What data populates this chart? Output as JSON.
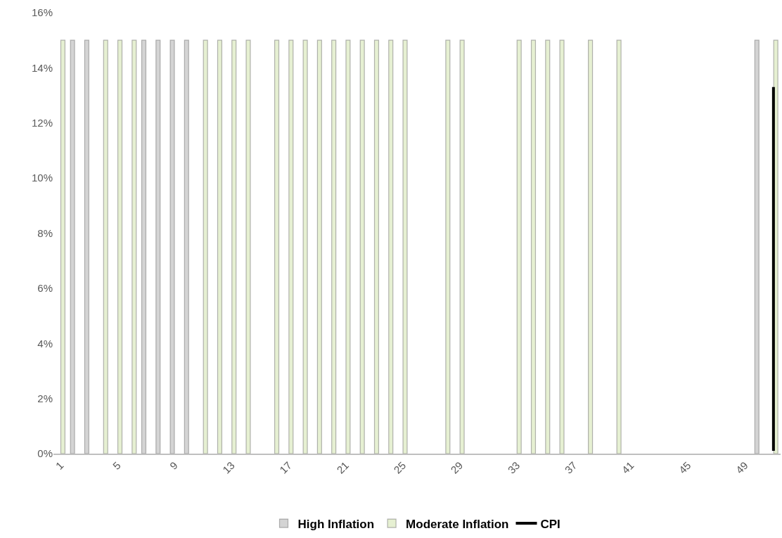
{
  "chart_data": {
    "type": "bar",
    "x": [
      1,
      2,
      3,
      4,
      5,
      6,
      7,
      8,
      9,
      10,
      11,
      12,
      13,
      14,
      15,
      16,
      17,
      18,
      19,
      20,
      21,
      22,
      23,
      24,
      25,
      26,
      27,
      28,
      29,
      30,
      31,
      32,
      33,
      34,
      35,
      36,
      37,
      38,
      39,
      40,
      41,
      42,
      43,
      44,
      45,
      46,
      47,
      48,
      49,
      50,
      51
    ],
    "series": [
      {
        "name": "High Inflation",
        "color": "#d4d4d4",
        "values": [
          null,
          15,
          15,
          null,
          null,
          null,
          15,
          15,
          15,
          15,
          null,
          null,
          null,
          null,
          null,
          null,
          null,
          null,
          null,
          null,
          null,
          null,
          null,
          null,
          null,
          null,
          null,
          null,
          null,
          null,
          null,
          null,
          null,
          null,
          null,
          null,
          null,
          null,
          null,
          null,
          null,
          null,
          null,
          null,
          null,
          null,
          null,
          null,
          null,
          15,
          null
        ]
      },
      {
        "name": "Moderate Inflation",
        "color": "#e6f0d2",
        "values": [
          15,
          null,
          null,
          15,
          15,
          15,
          null,
          null,
          null,
          null,
          15,
          15,
          15,
          15,
          null,
          15,
          15,
          15,
          15,
          15,
          15,
          15,
          15,
          15,
          15,
          null,
          null,
          15,
          15,
          null,
          null,
          null,
          15,
          15,
          15,
          15,
          null,
          15,
          null,
          15,
          null,
          null,
          null,
          null,
          null,
          null,
          null,
          null,
          null,
          null,
          15
        ]
      },
      {
        "name": "CPI",
        "type": "line",
        "color": "#000000",
        "x": [
          51,
          51
        ],
        "values": [
          13.3,
          0.1
        ]
      }
    ],
    "xlim": [
      0.5,
      51.5
    ],
    "xticks": [
      1,
      5,
      9,
      13,
      17,
      21,
      25,
      29,
      33,
      37,
      41,
      45,
      49
    ],
    "ylim": [
      0,
      16
    ],
    "yticks": [
      {
        "value": 0,
        "label": "0%"
      },
      {
        "value": 2,
        "label": "2%"
      },
      {
        "value": 4,
        "label": "4%"
      },
      {
        "value": 6,
        "label": "6%"
      },
      {
        "value": 8,
        "label": "8%"
      },
      {
        "value": 10,
        "label": "10%"
      },
      {
        "value": 12,
        "label": "12%"
      },
      {
        "value": 14,
        "label": "14%"
      },
      {
        "value": 16,
        "label": "16%"
      }
    ],
    "grid": false,
    "legend": "bottom"
  }
}
